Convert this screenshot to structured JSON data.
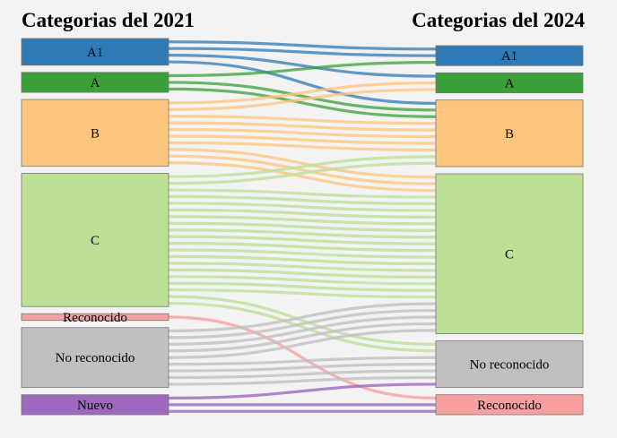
{
  "titles": {
    "left": "Categorias del 2021",
    "right": "Categorias del 2024"
  },
  "colors": {
    "A1": "#2f7ab5",
    "A": "#3aa03a",
    "B": "#fec57f",
    "C": "#bbe096",
    "Reconocido": "#f8a0a0",
    "No reconocido": "#c0c0c0",
    "Nuevo": "#9e68bf"
  },
  "left_nodes": [
    {
      "id": "A1",
      "label": "A1"
    },
    {
      "id": "A",
      "label": "A"
    },
    {
      "id": "B",
      "label": "B"
    },
    {
      "id": "C",
      "label": "C"
    },
    {
      "id": "Reconocido",
      "label": "Reconocido"
    },
    {
      "id": "No reconocido",
      "label": "No reconocido"
    },
    {
      "id": "Nuevo",
      "label": "Nuevo"
    }
  ],
  "right_nodes": [
    {
      "id": "A1",
      "label": "A1"
    },
    {
      "id": "A",
      "label": "A"
    },
    {
      "id": "B",
      "label": "B"
    },
    {
      "id": "C",
      "label": "C"
    },
    {
      "id": "No reconocido",
      "label": "No reconocido"
    },
    {
      "id": "Reconocido",
      "label": "Reconocido"
    }
  ],
  "chart_data": {
    "type": "sankey",
    "flows": [
      {
        "source": "A1",
        "target": "A1",
        "value": 2
      },
      {
        "source": "A1",
        "target": "A",
        "value": 1
      },
      {
        "source": "A1",
        "target": "B",
        "value": 1
      },
      {
        "source": "A",
        "target": "A1",
        "value": 1
      },
      {
        "source": "A",
        "target": "B",
        "value": 2
      },
      {
        "source": "B",
        "target": "A",
        "value": 2
      },
      {
        "source": "B",
        "target": "B",
        "value": 5
      },
      {
        "source": "B",
        "target": "C",
        "value": 3
      },
      {
        "source": "C",
        "target": "B",
        "value": 2
      },
      {
        "source": "C",
        "target": "C",
        "value": 16
      },
      {
        "source": "C",
        "target": "No reconocido",
        "value": 2
      },
      {
        "source": "Reconocido",
        "target": "Reconocido",
        "value": 1
      },
      {
        "source": "No reconocido",
        "target": "C",
        "value": 5
      },
      {
        "source": "No reconocido",
        "target": "No reconocido",
        "value": 4
      },
      {
        "source": "Nuevo",
        "target": "No reconocido",
        "value": 1
      },
      {
        "source": "Nuevo",
        "target": "Reconocido",
        "value": 2
      }
    ]
  }
}
